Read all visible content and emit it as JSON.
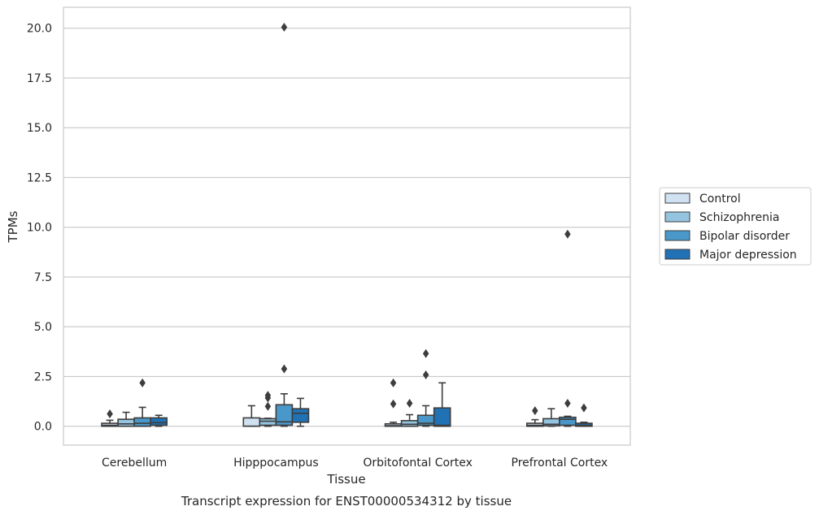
{
  "chart_data": {
    "type": "boxplot",
    "title": "Transcript expression for ENST00000534312 by tissue",
    "xlabel": "Tissue",
    "ylabel": "TPMs",
    "ylim": [
      -0.95,
      21.05
    ],
    "yticks": [
      0.0,
      2.5,
      5.0,
      7.5,
      10.0,
      12.5,
      15.0,
      17.5,
      20.0
    ],
    "ytick_labels": [
      "0.0",
      "2.5",
      "5.0",
      "7.5",
      "10.0",
      "12.5",
      "15.0",
      "17.5",
      "20.0"
    ],
    "grid": "horizontal",
    "legend_position": "right",
    "categories": [
      "Cerebellum",
      "Hipppocampus",
      "Orbitofontal Cortex",
      "Prefrontal Cortex"
    ],
    "series": [
      {
        "name": "Control",
        "color": "#d0e1f2",
        "boxes": [
          {
            "whisker_low": 0.0,
            "q1": 0.0,
            "median": 0.05,
            "q3": 0.15,
            "whisker_high": 0.3,
            "outliers": [
              0.62
            ]
          },
          {
            "whisker_low": 0.0,
            "q1": 0.0,
            "median": 0.0,
            "q3": 0.42,
            "whisker_high": 1.03,
            "outliers": []
          },
          {
            "whisker_low": 0.0,
            "q1": 0.0,
            "median": 0.03,
            "q3": 0.12,
            "whisker_high": 0.2,
            "outliers": [
              1.12,
              2.18
            ]
          },
          {
            "whisker_low": 0.0,
            "q1": 0.0,
            "median": 0.05,
            "q3": 0.15,
            "whisker_high": 0.33,
            "outliers": [
              0.78
            ]
          }
        ]
      },
      {
        "name": "Schizophrenia",
        "color": "#94c4df",
        "boxes": [
          {
            "whisker_low": 0.0,
            "q1": 0.0,
            "median": 0.12,
            "q3": 0.35,
            "whisker_high": 0.7,
            "outliers": []
          },
          {
            "whisker_low": 0.0,
            "q1": 0.05,
            "median": 0.25,
            "q3": 0.38,
            "whisker_high": 0.4,
            "outliers": [
              1.0,
              1.42,
              1.55
            ]
          },
          {
            "whisker_low": 0.0,
            "q1": 0.0,
            "median": 0.1,
            "q3": 0.28,
            "whisker_high": 0.58,
            "outliers": [
              1.15
            ]
          },
          {
            "whisker_low": 0.0,
            "q1": 0.02,
            "median": 0.1,
            "q3": 0.38,
            "whisker_high": 0.88,
            "outliers": []
          }
        ]
      },
      {
        "name": "Bipolar disorder",
        "color": "#4a98c9",
        "boxes": [
          {
            "whisker_low": 0.0,
            "q1": 0.0,
            "median": 0.15,
            "q3": 0.42,
            "whisker_high": 0.95,
            "outliers": [
              2.18
            ]
          },
          {
            "whisker_low": 0.0,
            "q1": 0.05,
            "median": 0.22,
            "q3": 1.08,
            "whisker_high": 1.63,
            "outliers": [
              2.88,
              20.05
            ]
          },
          {
            "whisker_low": 0.0,
            "q1": 0.05,
            "median": 0.15,
            "q3": 0.55,
            "whisker_high": 1.03,
            "outliers": [
              2.58,
              3.65
            ]
          },
          {
            "whisker_low": 0.0,
            "q1": 0.05,
            "median": 0.35,
            "q3": 0.45,
            "whisker_high": 0.5,
            "outliers": [
              1.15,
              9.65
            ]
          }
        ]
      },
      {
        "name": "Major depression",
        "color": "#2171b5",
        "boxes": [
          {
            "whisker_low": 0.0,
            "q1": 0.05,
            "median": 0.18,
            "q3": 0.42,
            "whisker_high": 0.55,
            "outliers": []
          },
          {
            "whisker_low": 0.0,
            "q1": 0.2,
            "median": 0.65,
            "q3": 0.88,
            "whisker_high": 1.4,
            "outliers": []
          },
          {
            "whisker_low": 0.0,
            "q1": 0.0,
            "median": 0.05,
            "q3": 0.92,
            "whisker_high": 2.18,
            "outliers": []
          },
          {
            "whisker_low": 0.0,
            "q1": 0.0,
            "median": 0.05,
            "q3": 0.15,
            "whisker_high": 0.2,
            "outliers": [
              0.92
            ]
          }
        ]
      }
    ]
  }
}
